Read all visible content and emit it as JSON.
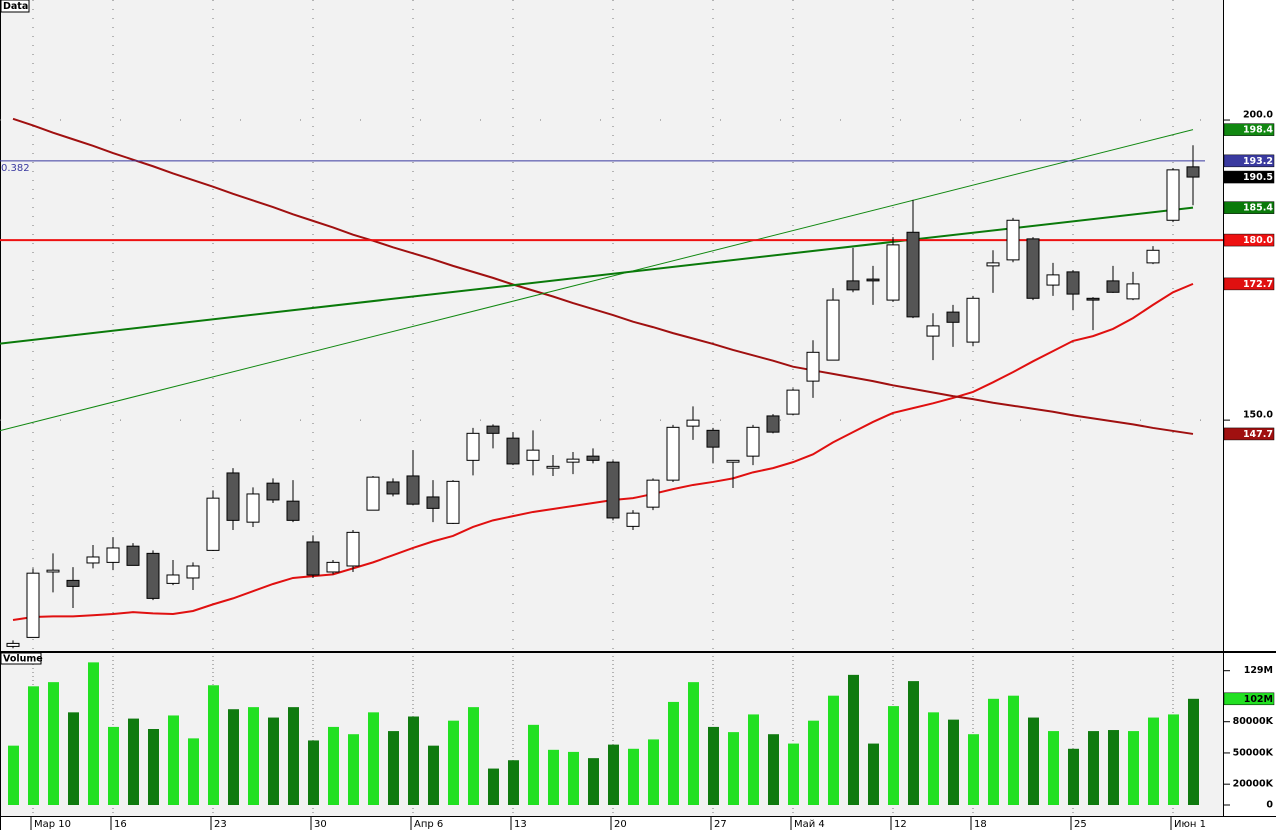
{
  "chart_data": [
    {
      "type": "candlestick",
      "title": "Data",
      "categories": [
        null,
        "Мар 10",
        null,
        null,
        null,
        "16",
        null,
        null,
        null,
        null,
        "23",
        null,
        null,
        null,
        null,
        "30",
        null,
        null,
        null,
        null,
        "Апр 6",
        null,
        null,
        null,
        null,
        "13",
        null,
        null,
        null,
        null,
        "20",
        null,
        null,
        null,
        null,
        "27",
        null,
        null,
        null,
        "Май 4",
        null,
        null,
        null,
        null,
        "12",
        null,
        null,
        null,
        "18",
        null,
        null,
        null,
        null,
        "25",
        null,
        null,
        null,
        null,
        "Июн 1",
        null
      ],
      "open": [
        112.3,
        113.8,
        124.7,
        123.3,
        126.2,
        126.3,
        129.0,
        127.8,
        122.8,
        123.7,
        128.3,
        141.2,
        133,
        139.5,
        136.5,
        129.7,
        124.7,
        125.7,
        135,
        139.7,
        140.7,
        137.2,
        132.8,
        143.3,
        149,
        147,
        143.3,
        142,
        143,
        144,
        143,
        132.3,
        135.5,
        140,
        149,
        148.3,
        143,
        144,
        150.7,
        151,
        156.5,
        160,
        173.2,
        173.5,
        170,
        181.3,
        164,
        168,
        163,
        175.7,
        176.7,
        180.2,
        172.5,
        174.7,
        170.3,
        173.2,
        170.2,
        176.2,
        183.3,
        192.2
      ],
      "high": [
        113.3,
        125.3,
        127.8,
        125.5,
        129.2,
        130.5,
        129.5,
        128.3,
        126.7,
        126.3,
        138.3,
        142,
        138.8,
        140.3,
        140,
        130.8,
        126.7,
        131.7,
        140.7,
        140.3,
        145,
        140,
        140,
        148.7,
        149.3,
        148,
        148.3,
        144.2,
        144.7,
        145.3,
        143.3,
        135,
        140.3,
        149.2,
        152.3,
        148.7,
        143.3,
        149.2,
        151,
        155.3,
        163.3,
        172,
        178.7,
        175.7,
        180.5,
        186.7,
        167.8,
        169.2,
        170.7,
        178.3,
        183.7,
        180.5,
        176.2,
        175,
        170.5,
        175.7,
        174.7,
        179,
        192,
        195.8
      ],
      "low": [
        112,
        113.8,
        121.3,
        118.7,
        125.3,
        125,
        125.8,
        120,
        122.5,
        121.7,
        128.2,
        131.7,
        132.2,
        136.2,
        133,
        123.7,
        124.3,
        124.7,
        135,
        137.3,
        135.8,
        133,
        132.7,
        140.8,
        145.3,
        142.5,
        140.8,
        140.7,
        141,
        142.8,
        133.3,
        131.7,
        135,
        139.7,
        146.7,
        142.8,
        138.7,
        142.5,
        147.8,
        150.8,
        153.7,
        160,
        171.3,
        169.2,
        169.7,
        167,
        160,
        162.2,
        162.3,
        171.2,
        176.3,
        170,
        170.7,
        168.3,
        165,
        171.2,
        170,
        176,
        183,
        185.8
      ],
      "close": [
        112.8,
        124.5,
        125.0,
        122.3,
        127.2,
        128.7,
        125.8,
        120.3,
        124.2,
        125.7,
        137,
        133.3,
        137.7,
        136.7,
        133.3,
        124.2,
        126.3,
        131.3,
        140.5,
        137.7,
        136,
        135.3,
        139.8,
        147.8,
        147.8,
        142.7,
        145,
        142.3,
        143.5,
        143.3,
        133.7,
        134.5,
        140,
        148.8,
        150,
        145.5,
        143.3,
        148.8,
        148,
        155,
        161.3,
        170,
        171.7,
        173.2,
        179.2,
        167.2,
        165.7,
        166.3,
        170.3,
        176.2,
        183.3,
        170.3,
        174.2,
        171,
        170,
        171.3,
        172.7,
        178.3,
        191.7,
        190.5
      ],
      "up_color": "#ffffff",
      "down_color": "#555555",
      "close_tag_color": "#000000",
      "lines": [
        {
          "color": "#e01010",
          "values": [
            116.7,
            117.2,
            117.3,
            117.3,
            117.5,
            117.7,
            118,
            117.8,
            117.7,
            118.2,
            119.3,
            120.3,
            121.5,
            122.7,
            123.7,
            124,
            124.3,
            125.3,
            126.3,
            127.5,
            128.7,
            129.8,
            130.7,
            132.2,
            133.3,
            134,
            134.7,
            135.2,
            135.7,
            136.2,
            136.7,
            137,
            137.7,
            138.5,
            139.2,
            139.7,
            140.3,
            141.3,
            142,
            143,
            144.3,
            146.3,
            148,
            149.7,
            151.2,
            152,
            152.8,
            153.7,
            154.7,
            156.3,
            158,
            159.8,
            161.5,
            163.2,
            164,
            165.2,
            167,
            169.2,
            171.3,
            172.7
          ]
        },
        {
          "color": "#a01010",
          "values": [
            200.2,
            199.1,
            197.9,
            196.8,
            195.7,
            194.5,
            193.4,
            192.3,
            191.1,
            190,
            188.9,
            187.7,
            186.6,
            185.5,
            184.3,
            183.2,
            182.1,
            180.9,
            179.9,
            178.8,
            177.8,
            176.8,
            175.7,
            174.7,
            173.7,
            172.6,
            171.6,
            170.6,
            169.5,
            168.5,
            167.5,
            166.4,
            165.5,
            164.5,
            163.6,
            162.7,
            161.7,
            160.8,
            159.9,
            158.9,
            158.3,
            157.7,
            157.1,
            156.5,
            155.8,
            155.2,
            154.6,
            154,
            153.5,
            152.9,
            152.4,
            151.9,
            151.4,
            150.8,
            150.3,
            149.8,
            149.3,
            148.7,
            148.2,
            147.7
          ]
        }
      ],
      "trendlines": [
        {
          "color": "#118811",
          "values": [
            148.8,
            198.4
          ]
        },
        {
          "color": "#0a7a0a",
          "values": [
            163.0,
            185.4
          ]
        }
      ],
      "hlines": [
        {
          "name": "0.382",
          "color": "#3a3aa0",
          "value": 193.2
        },
        {
          "color": "#ee1111",
          "value": {
            "value": 180,
            "label": "180.0"
          }
        }
      ],
      "ylim": [
        111.7,
        220
      ],
      "yticks": [
        {
          "value": 200,
          "label": "200.0"
        },
        {
          "value": 150,
          "label": "150.0"
        }
      ],
      "grid": true
    },
    {
      "type": "bar",
      "title": "Volume",
      "values": [
        57000000,
        114000000,
        118000000,
        89000000,
        137000000,
        75000000,
        83000000,
        73000000,
        86000000,
        64000000,
        115000000,
        92000000,
        94000000,
        84000000,
        94000000,
        62000000,
        75000000,
        68000000,
        89000000,
        71000000,
        85000000,
        57000000,
        81000000,
        94000000,
        35000000,
        43000000,
        77000000,
        53000000,
        51000000,
        45000000,
        58000000,
        54000000,
        63000000,
        99000000,
        118000000,
        75000000,
        70000000,
        87000000,
        68000000,
        59000000,
        81000000,
        105000000,
        125000000,
        59000000,
        95000000,
        119000000,
        89000000,
        82000000,
        68000000,
        102000000,
        105000000,
        84000000,
        71000000,
        54000000,
        71000000,
        72000000,
        71000000,
        84000000,
        87000000,
        102000000
      ],
      "last_value_label": "102M",
      "up_color": "#22e022",
      "down_color": "#0f7a0f",
      "ylim": [
        0,
        146000000
      ],
      "yticks": [
        {
          "value": 129000000,
          "label": "129M"
        },
        {
          "value": 80000000,
          "label": "80000K"
        },
        {
          "value": 50000000,
          "label": "50000K"
        },
        {
          "value": 20000000,
          "label": "20000K"
        },
        0
      ]
    }
  ]
}
